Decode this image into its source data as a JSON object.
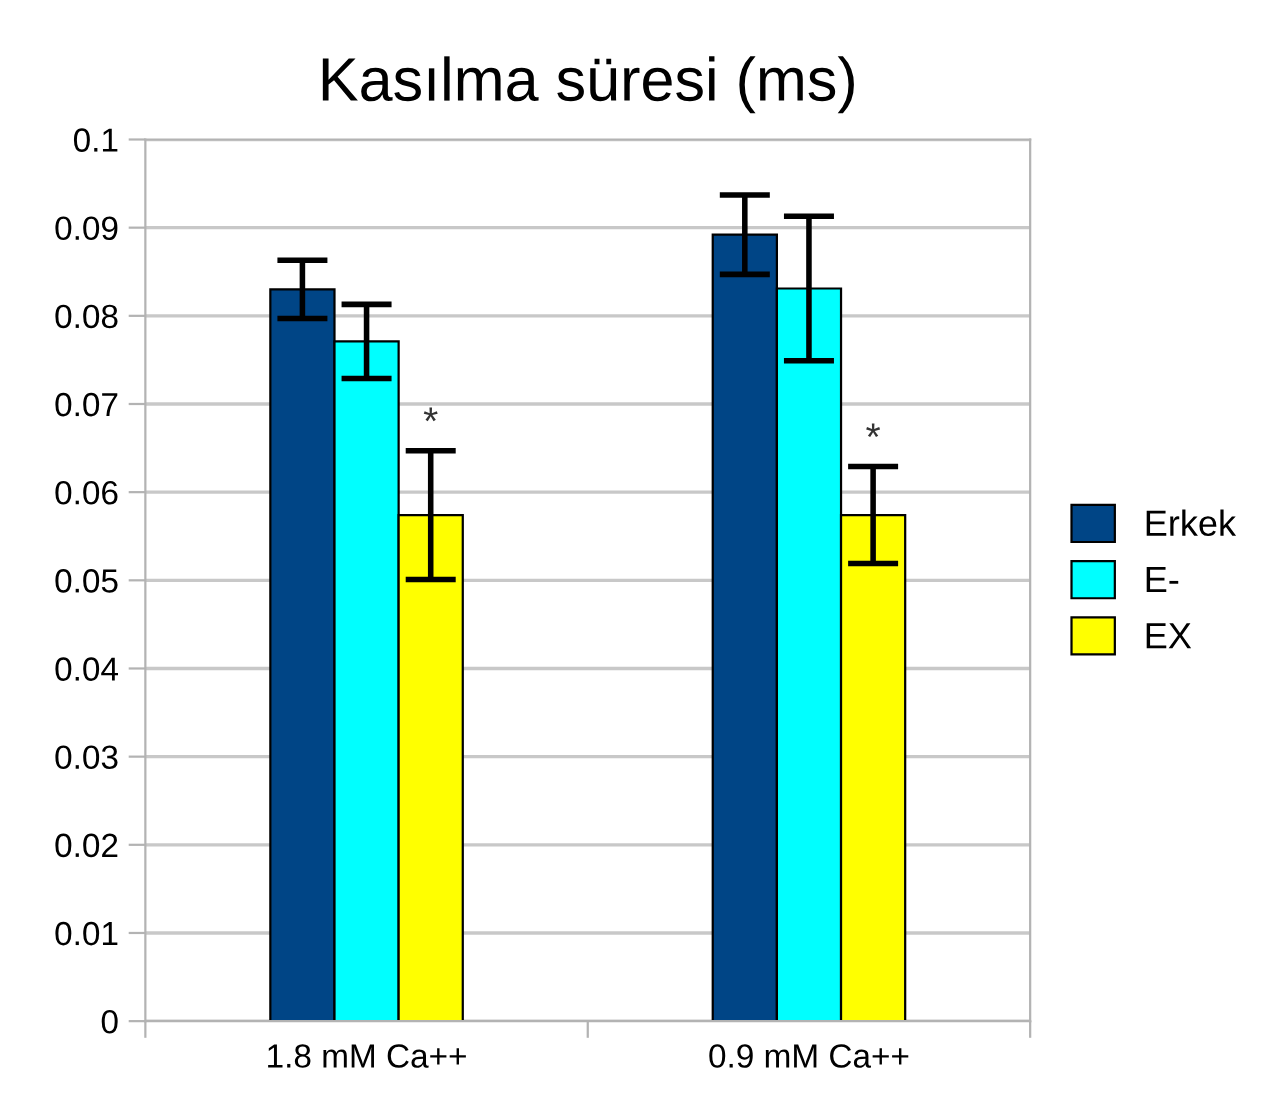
{
  "chart_data": {
    "type": "bar",
    "title": "Kasılma süresi (ms)",
    "categories": [
      "1.8 mM Ca++",
      "0.9 mM Ca++"
    ],
    "series": [
      {
        "name": "Erkek",
        "color": "#004586",
        "values": [
          0.083,
          0.0892
        ],
        "errors": [
          0.0033,
          0.0045
        ]
      },
      {
        "name": "E-",
        "color": "#00ffff",
        "values": [
          0.0771,
          0.0831
        ],
        "errors": [
          0.0042,
          0.0082
        ]
      },
      {
        "name": "EX",
        "color": "#ffff00",
        "values": [
          0.0574,
          0.0574
        ],
        "errors": [
          0.0073,
          0.0055
        ]
      }
    ],
    "annotations": [
      "*",
      "*"
    ],
    "ylim": [
      0,
      0.1
    ],
    "yticks": [
      0,
      {
        "value": 0.01,
        "label": "0.01"
      },
      {
        "value": 0.02,
        "label": "0.02"
      },
      {
        "value": 0.03,
        "label": "0.03"
      },
      {
        "value": 0.04,
        "label": "0.04"
      },
      {
        "value": 0.05,
        "label": "0.05"
      },
      {
        "value": 0.06,
        "label": "0.06"
      },
      {
        "value": 0.07,
        "label": "0.07"
      },
      {
        "value": 0.08,
        "label": "0.08"
      },
      {
        "value": 0.09,
        "label": "0.09"
      },
      {
        "value": 0.1,
        "label": "0.1"
      }
    ],
    "grid": "y",
    "legend": "right"
  }
}
